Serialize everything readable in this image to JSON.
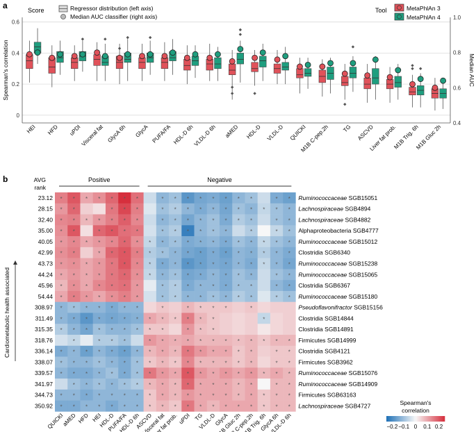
{
  "panel_a": {
    "label": "a",
    "score_title": "Score",
    "tool_title": "Tool",
    "legend_regressor": "Regressor distribution (left axis)",
    "legend_auc": "Median AUC classifier (right axis)",
    "tools": [
      "MetaPhlAn 3",
      "MetaPhlAn 4"
    ],
    "colors": {
      "mp3": "#e0525a",
      "mp4": "#1f9e7f",
      "grid": "#dcdcdc",
      "axis": "#555555"
    }
  },
  "panel_b": {
    "label": "b",
    "avg_rank_title": "AVG\nrank",
    "positive_label": "Positive",
    "negative_label": "Negative",
    "side_label": "Cardiometabolic health associated",
    "star": "*",
    "colorbar_title": "Spearman's correlation",
    "colorbar_ticks": [
      "−0.2",
      "−0.1",
      "0",
      "0.1",
      "0.2"
    ]
  },
  "chart_data": [
    {
      "type": "box",
      "title": "",
      "ylabel": "Spearman's correlation",
      "y2label": "Median AUC",
      "ylim": [
        -0.05,
        0.63
      ],
      "y2lim": [
        0.4,
        1.0
      ],
      "yticks": [
        0,
        0.2,
        0.4,
        0.6
      ],
      "y2ticks": [
        0.4,
        0.6,
        0.8,
        1.0
      ],
      "grid": true,
      "categories": [
        "HEI",
        "HFD",
        "uPDI",
        "Visceral fat",
        "GlycA 6h",
        "GlycA",
        "PUFA/FA",
        "HDL-D 6h",
        "VLDL-D 6h",
        "aMED",
        "HDL-D",
        "VLDL-D",
        "QUICKI",
        "M1B C-pep.2h",
        "TG",
        "ASCVD",
        "Liver fat prob.",
        "M1B Trig. 6h",
        "M1B Gluc 2h"
      ],
      "series": [
        {
          "name": "MetaPhlAn 3",
          "q1": [
            0.3,
            0.27,
            0.3,
            0.32,
            0.3,
            0.3,
            0.3,
            0.29,
            0.29,
            0.26,
            0.28,
            0.27,
            0.24,
            0.21,
            0.19,
            0.17,
            0.17,
            0.13,
            0.11
          ],
          "median": [
            0.35,
            0.31,
            0.34,
            0.36,
            0.34,
            0.34,
            0.34,
            0.32,
            0.33,
            0.29,
            0.3,
            0.3,
            0.26,
            0.25,
            0.21,
            0.2,
            0.2,
            0.15,
            0.14
          ],
          "q3": [
            0.39,
            0.37,
            0.37,
            0.39,
            0.38,
            0.37,
            0.37,
            0.36,
            0.36,
            0.33,
            0.34,
            0.33,
            0.3,
            0.29,
            0.25,
            0.24,
            0.23,
            0.18,
            0.17
          ],
          "whisker_low": [
            0.21,
            0.18,
            0.22,
            0.22,
            0.2,
            0.22,
            0.22,
            0.2,
            0.22,
            0.1,
            0.19,
            0.2,
            0.14,
            0.12,
            0.1,
            0.08,
            0.08,
            0.05,
            0.03
          ],
          "whisker_high": [
            0.48,
            0.45,
            0.45,
            0.47,
            0.46,
            0.46,
            0.47,
            0.45,
            0.46,
            0.42,
            0.42,
            0.42,
            0.37,
            0.36,
            0.33,
            0.33,
            0.31,
            0.26,
            0.24
          ],
          "outliers": [
            [],
            [],
            [],
            [],
            [
              0.43
            ],
            [],
            [],
            [],
            [],
            [
              0.18,
              0.14
            ],
            [
              0.14
            ],
            [],
            [],
            [],
            [
              0.07
            ],
            [],
            [],
            [
              0.32,
              0.3
            ],
            []
          ],
          "median_auc": [
            0.79,
            0.77,
            0.78,
            0.8,
            0.77,
            0.78,
            0.78,
            0.77,
            0.77,
            0.75,
            0.77,
            0.76,
            0.72,
            0.72,
            0.68,
            0.67,
            0.66,
            0.62,
            0.6
          ]
        },
        {
          "name": "MetaPhlAn 4",
          "q1": [
            0.4,
            0.34,
            0.35,
            0.32,
            0.34,
            0.34,
            0.35,
            0.32,
            0.3,
            0.33,
            0.31,
            0.29,
            0.25,
            0.23,
            0.24,
            0.2,
            0.18,
            0.13,
            0.11
          ],
          "median": [
            0.44,
            0.37,
            0.38,
            0.34,
            0.36,
            0.37,
            0.37,
            0.35,
            0.33,
            0.36,
            0.35,
            0.31,
            0.27,
            0.27,
            0.27,
            0.24,
            0.21,
            0.16,
            0.14
          ],
          "q3": [
            0.47,
            0.41,
            0.41,
            0.38,
            0.4,
            0.4,
            0.41,
            0.38,
            0.37,
            0.4,
            0.38,
            0.34,
            0.3,
            0.31,
            0.31,
            0.3,
            0.25,
            0.19,
            0.17
          ],
          "whisker_low": [
            0.33,
            0.26,
            0.28,
            0.22,
            0.22,
            0.26,
            0.26,
            0.24,
            0.22,
            0.21,
            0.22,
            0.2,
            0.17,
            0.14,
            0.15,
            0.1,
            0.1,
            0.05,
            0.04
          ],
          "whisker_high": [
            0.56,
            0.48,
            0.48,
            0.46,
            0.49,
            0.48,
            0.49,
            0.45,
            0.44,
            0.48,
            0.46,
            0.44,
            0.37,
            0.37,
            0.38,
            0.38,
            0.33,
            0.27,
            0.24
          ],
          "outliers": [
            [],
            [],
            [
              0.49
            ],
            [
              0.49
            ],
            [
              0.5
            ],
            [
              0.5
            ],
            [],
            [],
            [],
            [
              0.55,
              0.52
            ],
            [],
            [],
            [],
            [],
            [
              0.44
            ],
            [],
            [],
            [
              0.3
            ],
            []
          ],
          "median_auc": [
            0.8,
            0.79,
            0.79,
            0.78,
            0.79,
            0.79,
            0.8,
            0.79,
            0.79,
            0.82,
            0.8,
            0.78,
            0.73,
            0.74,
            0.74,
            0.76,
            0.7,
            0.65,
            0.64
          ]
        }
      ]
    },
    {
      "type": "heatmap",
      "title": "",
      "columns": [
        "QUICKI",
        "aMED",
        "HFD",
        "HEI",
        "HDL-D",
        "PUFA/FA",
        "HDL-D 6h",
        "ASCVD",
        "Visceral fat",
        "Liver fat prob.",
        "uPDI",
        "TG",
        "VLDL-D",
        "GlycA",
        "M1B Gluc 2h",
        "M1B C-pep.2h",
        "M1B Trig. 6h",
        "GlycA 6h",
        "VLDL-D 6h"
      ],
      "column_groups": [
        {
          "name": "Positive",
          "count": 7
        },
        {
          "name": "Negative",
          "count": 12
        }
      ],
      "rows": [
        {
          "rank": "23.12",
          "genus": "Ruminococcaceae",
          "sgb": "SGB15051",
          "italic": true,
          "values": [
            0.15,
            0.2,
            0.1,
            0.13,
            0.18,
            0.25,
            0.17,
            -0.05,
            -0.12,
            -0.1,
            -0.18,
            -0.15,
            -0.14,
            -0.16,
            -0.12,
            -0.1,
            -0.05,
            -0.14,
            -0.16
          ]
        },
        {
          "rank": "28.15",
          "genus": "Lachnospiraceae",
          "sgb": "SGB4894",
          "italic": true,
          "values": [
            0.12,
            0.18,
            0.05,
            0.03,
            0.16,
            0.22,
            0.15,
            -0.03,
            -0.1,
            -0.08,
            -0.12,
            -0.14,
            -0.12,
            -0.15,
            -0.1,
            -0.12,
            -0.06,
            -0.1,
            -0.12
          ]
        },
        {
          "rank": "32.40",
          "genus": "Lachnospiraceae",
          "sgb": "SGB4882",
          "italic": true,
          "values": [
            0.14,
            0.15,
            0.08,
            0.12,
            0.15,
            0.19,
            0.14,
            -0.05,
            -0.12,
            -0.1,
            -0.15,
            -0.12,
            -0.1,
            -0.14,
            -0.08,
            -0.1,
            -0.05,
            -0.1,
            -0.12
          ]
        },
        {
          "rank": "35.00",
          "genus": "Alphaproteobacteria",
          "sgb": "SGB4777",
          "italic": false,
          "values": [
            0.13,
            0.2,
            0.03,
            0.18,
            0.2,
            0.17,
            0.16,
            -0.04,
            -0.1,
            -0.08,
            -0.22,
            -0.12,
            -0.1,
            -0.12,
            -0.05,
            -0.08,
            0.0,
            -0.06,
            -0.1
          ]
        },
        {
          "rank": "40.05",
          "genus": "Ruminococcaceae",
          "sgb": "SGB15012",
          "italic": true,
          "values": [
            0.12,
            0.14,
            0.1,
            0.12,
            0.14,
            0.18,
            0.13,
            -0.06,
            -0.12,
            -0.1,
            -0.14,
            -0.13,
            -0.12,
            -0.14,
            -0.1,
            -0.12,
            -0.06,
            -0.1,
            -0.12
          ]
        },
        {
          "rank": "42.99",
          "genus": "Clostridia",
          "sgb": "SGB6340",
          "italic": false,
          "values": [
            0.13,
            0.15,
            0.05,
            0.1,
            0.18,
            0.2,
            0.15,
            -0.08,
            -0.1,
            -0.12,
            -0.15,
            -0.16,
            -0.14,
            -0.16,
            -0.12,
            -0.13,
            -0.08,
            -0.12,
            -0.14
          ]
        },
        {
          "rank": "43.73",
          "genus": "Ruminococcaceae",
          "sgb": "SGB15238",
          "italic": true,
          "values": [
            0.12,
            0.13,
            0.1,
            0.12,
            0.16,
            0.2,
            0.14,
            -0.07,
            -0.14,
            -0.12,
            -0.18,
            -0.16,
            -0.14,
            -0.15,
            -0.12,
            -0.14,
            -0.06,
            -0.12,
            -0.15
          ]
        },
        {
          "rank": "44.24",
          "genus": "Ruminococcaceae",
          "sgb": "SGB15065",
          "italic": true,
          "values": [
            0.1,
            0.12,
            0.1,
            0.12,
            0.16,
            0.18,
            0.13,
            -0.06,
            -0.12,
            -0.1,
            -0.15,
            -0.14,
            -0.12,
            -0.14,
            -0.1,
            -0.12,
            -0.05,
            -0.1,
            -0.12
          ]
        },
        {
          "rank": "45.96",
          "genus": "Clostridia",
          "sgb": "SGB6367",
          "italic": false,
          "values": [
            0.08,
            0.13,
            0.1,
            0.14,
            0.16,
            0.17,
            0.12,
            -0.02,
            -0.1,
            -0.08,
            -0.14,
            -0.12,
            -0.12,
            -0.14,
            -0.1,
            -0.1,
            -0.05,
            -0.12,
            -0.14
          ]
        },
        {
          "rank": "54.44",
          "genus": "Ruminococcaceae",
          "sgb": "SGB15180",
          "italic": true,
          "values": [
            0.1,
            0.15,
            0.12,
            0.1,
            0.13,
            0.15,
            0.12,
            -0.04,
            -0.1,
            -0.08,
            -0.12,
            -0.12,
            -0.1,
            -0.12,
            -0.08,
            -0.1,
            -0.03,
            -0.08,
            -0.1
          ]
        },
        {
          "rank": "308.97",
          "genus": "Pseudoflavonifractor",
          "sgb": "SGB15156",
          "italic": true,
          "values": [
            -0.12,
            -0.1,
            -0.12,
            -0.12,
            -0.14,
            -0.12,
            -0.12,
            0.04,
            0.06,
            0.05,
            0.08,
            0.06,
            0.06,
            0.06,
            0.05,
            0.06,
            0.04,
            0.05,
            0.05
          ]
        },
        {
          "rank": "311.49",
          "genus": "Clostridia",
          "sgb": "SGB14844",
          "italic": false,
          "values": [
            -0.12,
            -0.14,
            -0.18,
            -0.14,
            -0.15,
            -0.14,
            -0.13,
            0.1,
            0.08,
            0.06,
            0.15,
            0.08,
            0.06,
            0.05,
            0.04,
            0.05,
            -0.06,
            0.04,
            0.05
          ]
        },
        {
          "rank": "315.35",
          "genus": "Clostridia",
          "sgb": "SGB14891",
          "italic": false,
          "values": [
            -0.08,
            -0.12,
            -0.15,
            -0.1,
            -0.12,
            -0.12,
            -0.1,
            0.06,
            0.06,
            0.04,
            0.12,
            0.07,
            0.06,
            0.05,
            0.04,
            0.05,
            0.02,
            0.04,
            0.05
          ]
        },
        {
          "rank": "318.76",
          "genus": "Firmicutes",
          "sgb": "SGB14999",
          "italic": false,
          "values": [
            -0.04,
            -0.06,
            -0.02,
            -0.08,
            -0.08,
            -0.1,
            -0.05,
            0.12,
            0.1,
            0.09,
            0.1,
            0.08,
            0.08,
            0.08,
            0.07,
            0.08,
            0.06,
            0.08,
            0.08
          ]
        },
        {
          "rank": "336.14",
          "genus": "Clostridia",
          "sgb": "SGB4121",
          "italic": false,
          "values": [
            -0.14,
            -0.12,
            -0.16,
            -0.12,
            -0.14,
            -0.16,
            -0.12,
            0.08,
            0.1,
            0.08,
            0.16,
            0.12,
            0.1,
            0.1,
            0.06,
            0.08,
            0.05,
            0.06,
            0.06
          ]
        },
        {
          "rank": "338.07",
          "genus": "Firmicutes",
          "sgb": "SGB3962",
          "italic": false,
          "values": [
            -0.1,
            -0.12,
            -0.12,
            -0.1,
            -0.12,
            -0.14,
            -0.1,
            0.06,
            0.08,
            0.06,
            0.14,
            0.08,
            0.08,
            0.08,
            0.06,
            0.08,
            0.04,
            0.06,
            0.06
          ]
        },
        {
          "rank": "339.57",
          "genus": "Ruminococcaceae",
          "sgb": "SGB15076",
          "italic": true,
          "values": [
            -0.12,
            -0.14,
            -0.14,
            -0.12,
            -0.1,
            -0.14,
            -0.1,
            0.16,
            0.12,
            0.1,
            0.2,
            0.12,
            0.1,
            0.12,
            0.1,
            0.12,
            0.08,
            0.1,
            0.08
          ]
        },
        {
          "rank": "341.97",
          "genus": "Ruminococcaceae",
          "sgb": "SGB14909",
          "italic": true,
          "values": [
            -0.05,
            -0.1,
            -0.12,
            -0.1,
            -0.12,
            -0.1,
            -0.08,
            0.08,
            0.1,
            0.08,
            0.18,
            0.1,
            0.1,
            0.1,
            0.08,
            0.1,
            0.0,
            0.08,
            0.08
          ]
        },
        {
          "rank": "344.73",
          "genus": "Firmicutes",
          "sgb": "SGB63163",
          "italic": false,
          "values": [
            -0.12,
            -0.12,
            -0.14,
            -0.12,
            -0.12,
            -0.12,
            -0.12,
            0.06,
            0.1,
            0.08,
            0.12,
            0.1,
            0.1,
            0.1,
            0.08,
            0.1,
            0.06,
            0.08,
            0.08
          ]
        },
        {
          "rank": "350.92",
          "genus": "Lachnospiraceae",
          "sgb": "SGB4727",
          "italic": true,
          "values": [
            -0.14,
            -0.14,
            -0.12,
            -0.12,
            -0.14,
            -0.12,
            -0.12,
            0.06,
            0.08,
            0.06,
            0.16,
            0.1,
            0.08,
            0.1,
            0.1,
            0.1,
            0.06,
            0.08,
            0.08
          ]
        }
      ],
      "colorbar": {
        "min": -0.25,
        "max": 0.25
      }
    }
  ]
}
